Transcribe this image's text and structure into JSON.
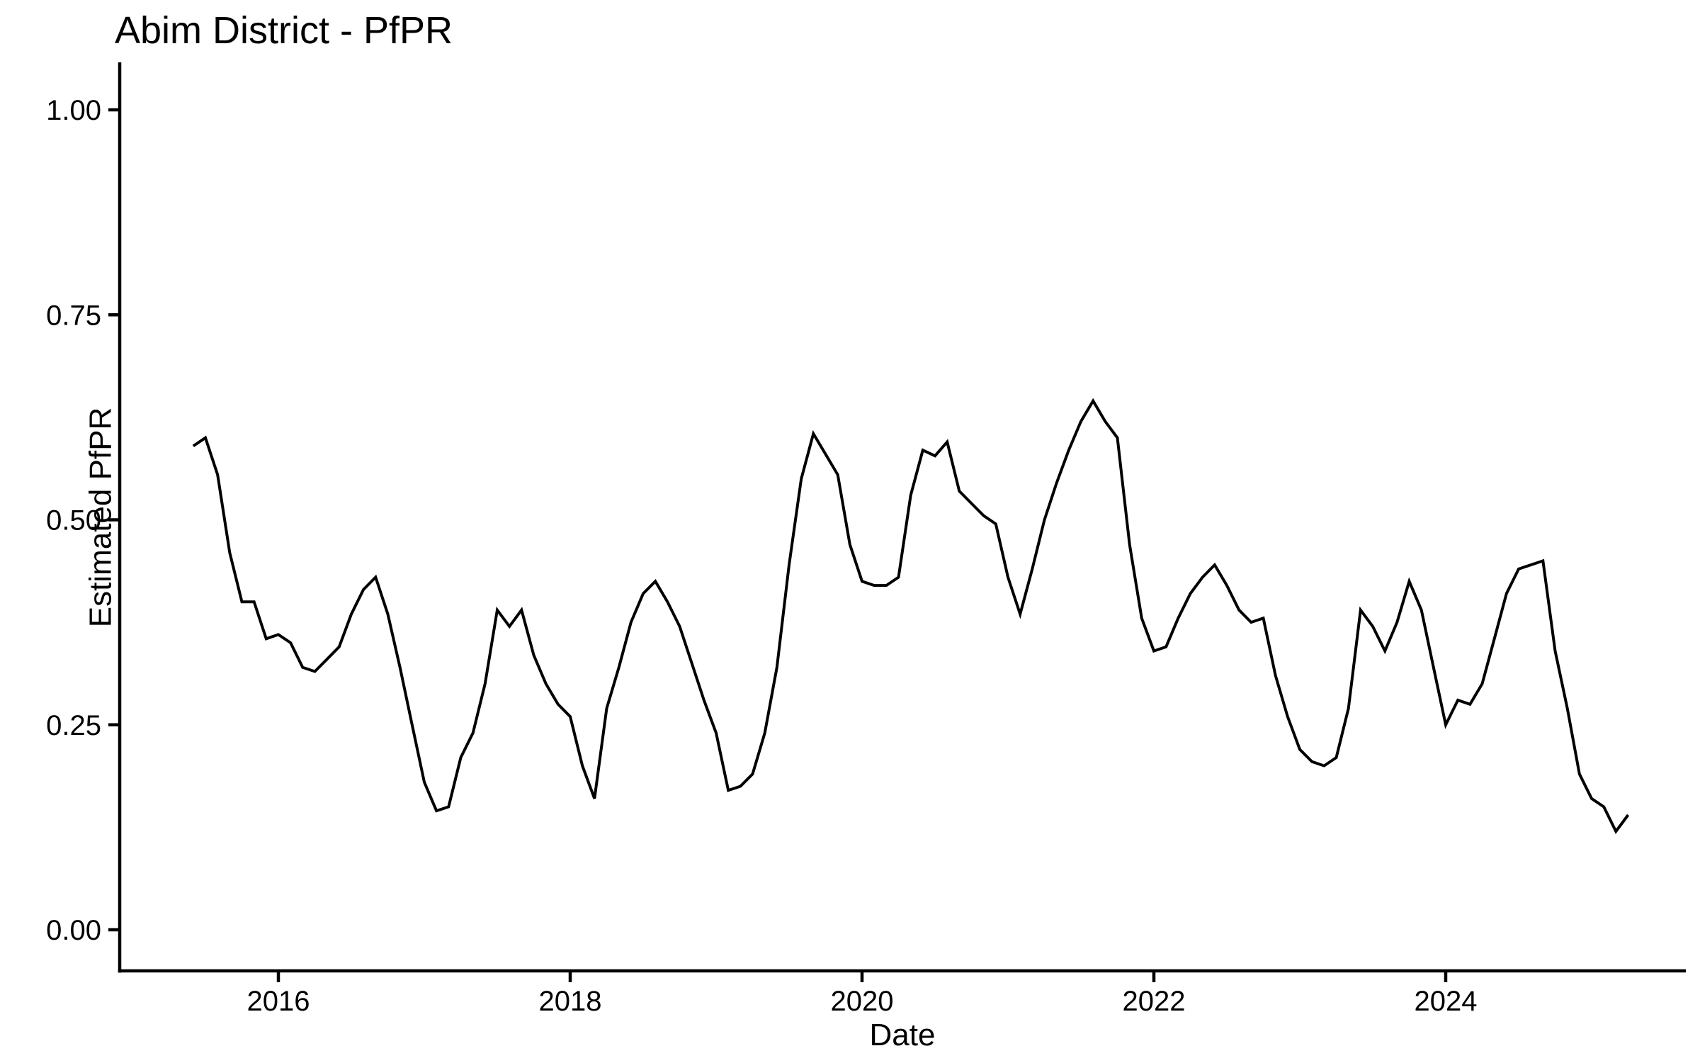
{
  "page": {
    "background_color": "#FFFFFF",
    "text_color": "#000000"
  },
  "chart_data": {
    "type": "line",
    "title": "Abim District - PfPR",
    "xlabel": "Date",
    "ylabel": "Estimated PfPR",
    "x_tick_labels": [
      "2016",
      "2018",
      "2020",
      "2022",
      "2024"
    ],
    "x_tick_years": [
      2016,
      2018,
      2020,
      2022,
      2024
    ],
    "y_tick_labels": [
      "0.00",
      "0.25",
      "0.50",
      "0.75",
      "1.00"
    ],
    "y_tick_values": [
      0,
      0.25,
      0.5,
      0.75,
      1.0
    ],
    "ylim": [
      0,
      1.05
    ],
    "x_range": [
      "2015-06",
      "2025-04"
    ],
    "grid": false,
    "legend": false,
    "line_color": "#000000",
    "axis_color": "#000000",
    "series": [
      {
        "name": "Estimated PfPR",
        "dates": [
          "2015-06",
          "2015-07",
          "2015-08",
          "2015-09",
          "2015-10",
          "2015-11",
          "2015-12",
          "2016-01",
          "2016-02",
          "2016-03",
          "2016-04",
          "2016-05",
          "2016-06",
          "2016-07",
          "2016-08",
          "2016-09",
          "2016-10",
          "2016-11",
          "2016-12",
          "2017-01",
          "2017-02",
          "2017-03",
          "2017-04",
          "2017-05",
          "2017-06",
          "2017-07",
          "2017-08",
          "2017-09",
          "2017-10",
          "2017-11",
          "2017-12",
          "2018-01",
          "2018-02",
          "2018-03",
          "2018-04",
          "2018-05",
          "2018-06",
          "2018-07",
          "2018-08",
          "2018-09",
          "2018-10",
          "2018-11",
          "2018-12",
          "2019-01",
          "2019-02",
          "2019-03",
          "2019-04",
          "2019-05",
          "2019-06",
          "2019-07",
          "2019-08",
          "2019-09",
          "2019-10",
          "2019-11",
          "2019-12",
          "2020-01",
          "2020-02",
          "2020-03",
          "2020-04",
          "2020-05",
          "2020-06",
          "2020-07",
          "2020-08",
          "2020-09",
          "2020-10",
          "2020-11",
          "2020-12",
          "2021-01",
          "2021-02",
          "2021-03",
          "2021-04",
          "2021-05",
          "2021-06",
          "2021-07",
          "2021-08",
          "2021-09",
          "2021-10",
          "2021-11",
          "2021-12",
          "2022-01",
          "2022-02",
          "2022-03",
          "2022-04",
          "2022-05",
          "2022-06",
          "2022-07",
          "2022-08",
          "2022-09",
          "2022-10",
          "2022-11",
          "2022-12",
          "2023-01",
          "2023-02",
          "2023-03",
          "2023-04",
          "2023-05",
          "2023-06",
          "2023-07",
          "2023-08",
          "2023-09",
          "2023-10",
          "2023-11",
          "2023-12",
          "2024-01",
          "2024-02",
          "2024-03",
          "2024-04",
          "2024-05",
          "2024-06",
          "2024-07",
          "2024-08",
          "2024-09",
          "2024-10",
          "2024-11",
          "2024-12",
          "2025-01",
          "2025-02",
          "2025-03",
          "2025-04"
        ],
        "values": [
          0.59,
          0.6,
          0.555,
          0.46,
          0.4,
          0.4,
          0.355,
          0.36,
          0.35,
          0.32,
          0.315,
          0.33,
          0.345,
          0.385,
          0.415,
          0.43,
          0.385,
          0.32,
          0.25,
          0.18,
          0.145,
          0.15,
          0.21,
          0.24,
          0.3,
          0.39,
          0.37,
          0.39,
          0.335,
          0.3,
          0.275,
          0.26,
          0.2,
          0.16,
          0.27,
          0.32,
          0.375,
          0.41,
          0.425,
          0.4,
          0.37,
          0.325,
          0.28,
          0.24,
          0.17,
          0.175,
          0.19,
          0.24,
          0.32,
          0.445,
          0.55,
          0.605,
          0.58,
          0.555,
          0.47,
          0.425,
          0.42,
          0.42,
          0.43,
          0.53,
          0.585,
          0.578,
          0.595,
          0.535,
          0.52,
          0.505,
          0.495,
          0.43,
          0.385,
          0.44,
          0.5,
          0.545,
          0.585,
          0.62,
          0.645,
          0.62,
          0.6,
          0.47,
          0.38,
          0.34,
          0.345,
          0.38,
          0.41,
          0.43,
          0.445,
          0.42,
          0.39,
          0.375,
          0.38,
          0.31,
          0.26,
          0.22,
          0.205,
          0.2,
          0.21,
          0.27,
          0.39,
          0.37,
          0.34,
          0.375,
          0.425,
          0.39,
          0.32,
          0.25,
          0.28,
          0.275,
          0.3,
          0.355,
          0.41,
          0.44,
          0.445,
          0.45,
          0.34,
          0.27,
          0.19,
          0.16,
          0.15,
          0.12,
          0.14
        ]
      }
    ]
  }
}
